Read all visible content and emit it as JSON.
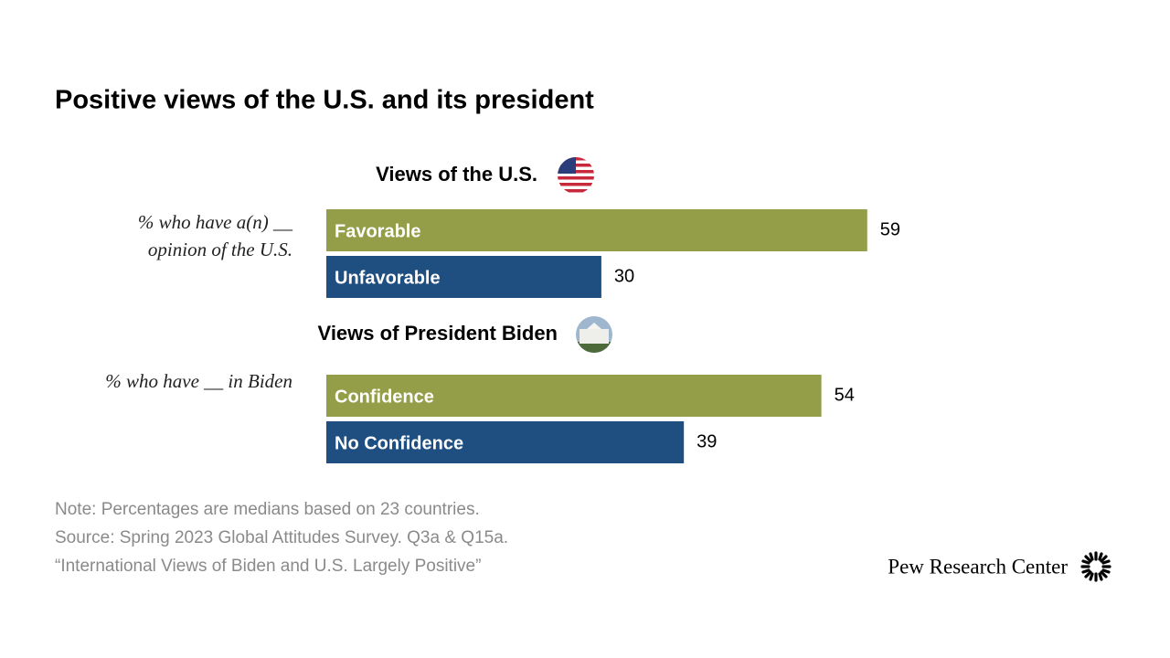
{
  "title": "Positive views of the U.S. and its president",
  "chart_data": [
    {
      "type": "bar",
      "title": "Views of the U.S.",
      "subtitle": [
        "% who have a(n) __",
        "opinion of the U.S."
      ],
      "categories": [
        "Favorable",
        "Unfavorable"
      ],
      "values": [
        59,
        30
      ],
      "colors": [
        "#949d48",
        "#1f4e80"
      ]
    },
    {
      "type": "bar",
      "title": "Views of President Biden",
      "subtitle": [
        "% who have __ in Biden"
      ],
      "categories": [
        "Confidence",
        "No Confidence"
      ],
      "values": [
        54,
        39
      ],
      "colors": [
        "#949d48",
        "#1f4e80"
      ]
    }
  ],
  "notes": [
    "Note: Percentages are medians based on 23 countries.",
    "Source: Spring 2023 Global Attitudes Survey. Q3a & Q15a.",
    "“International Views of Biden and U.S. Largely Positive”"
  ],
  "logo": "Pew Research Center"
}
